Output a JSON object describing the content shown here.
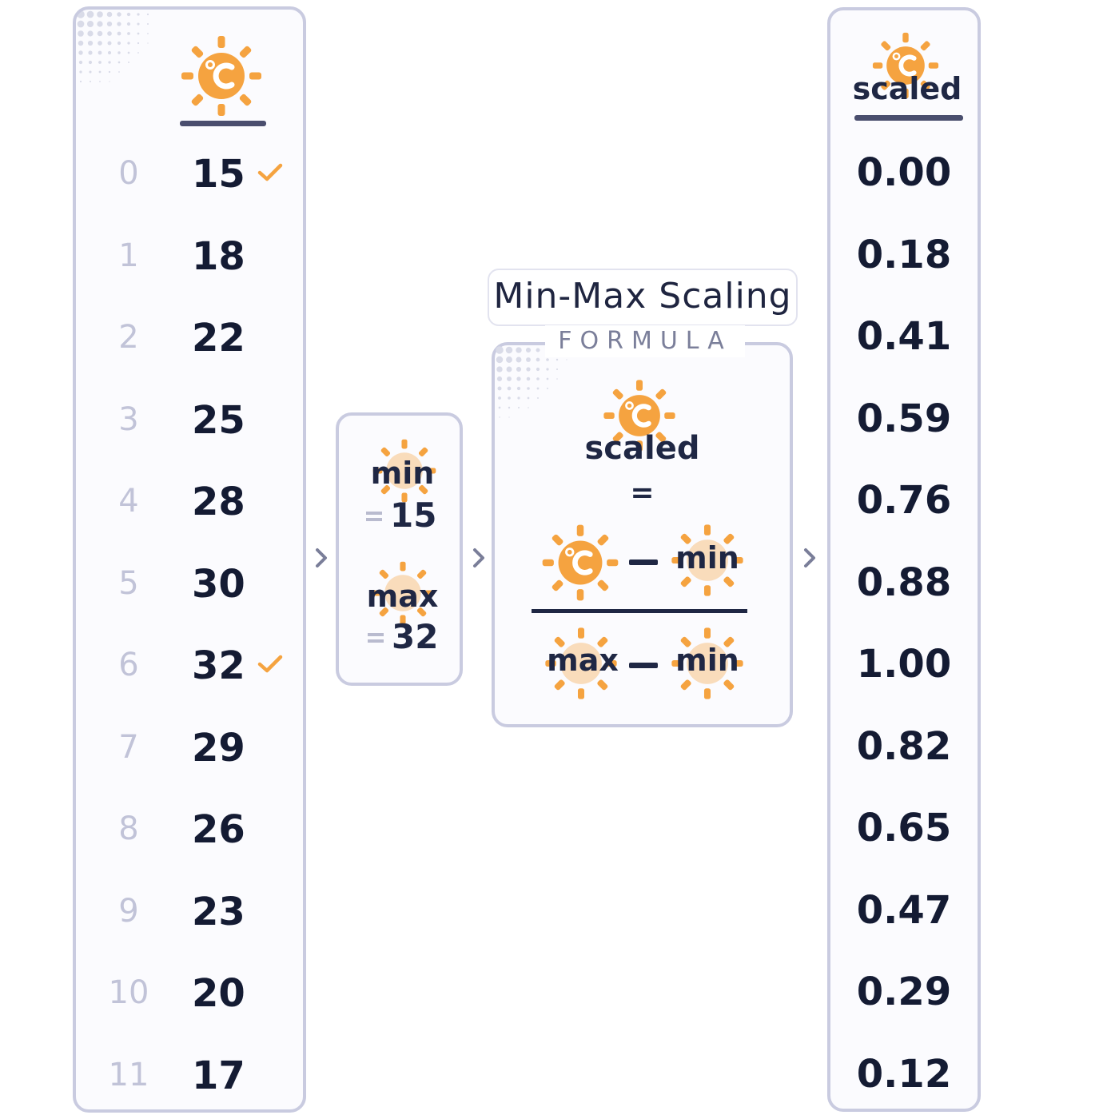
{
  "input_column": {
    "indices": [
      "0",
      "1",
      "2",
      "3",
      "4",
      "5",
      "6",
      "7",
      "8",
      "9",
      "10",
      "11"
    ],
    "values": [
      "15",
      "18",
      "22",
      "25",
      "28",
      "30",
      "32",
      "29",
      "26",
      "23",
      "20",
      "17"
    ],
    "checked_rows": [
      0,
      6
    ]
  },
  "output_column": {
    "header_label": "scaled",
    "values": [
      "0.00",
      "0.18",
      "0.41",
      "0.59",
      "0.76",
      "0.88",
      "1.00",
      "0.82",
      "0.65",
      "0.47",
      "0.29",
      "0.12"
    ]
  },
  "minmax": {
    "min_label": "min",
    "min_value": "15",
    "max_label": "max",
    "max_value": "32"
  },
  "formula": {
    "title": "Min-Max Scaling",
    "subtitle": "FORMULA",
    "lhs_label": "scaled",
    "equals": "=",
    "numerator_right": "min",
    "denominator_left": "max",
    "denominator_right": "min"
  },
  "icons": {
    "celsius_sun": "sun-celsius-icon",
    "check": "check-icon",
    "arrow": "chevron-right-icon"
  },
  "colors": {
    "accent": "#f5a340",
    "text": "#141b33",
    "border": "#c9cbe0",
    "muted": "#c1c3d8"
  }
}
